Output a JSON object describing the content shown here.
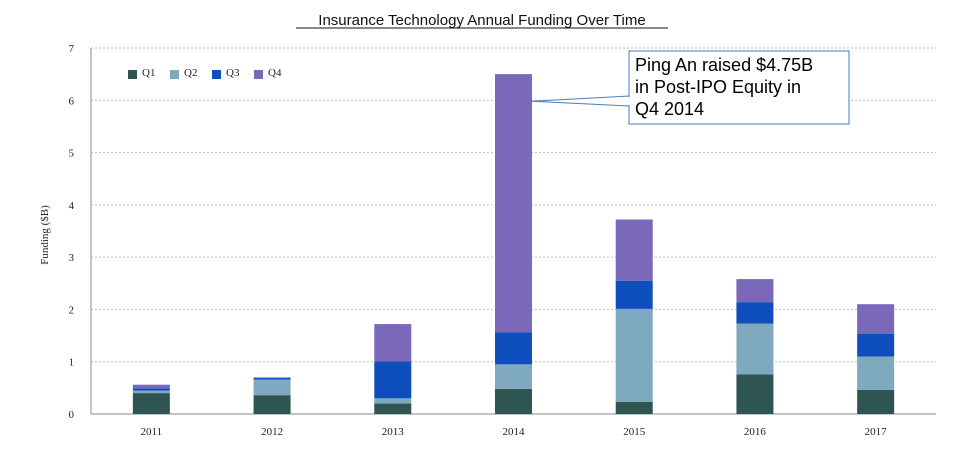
{
  "chart_data": {
    "type": "bar",
    "stacked": true,
    "title": "Insurance Technology Annual Funding Over Time",
    "xlabel": "",
    "ylabel": "Funding ($B)",
    "categories": [
      "2011",
      "2012",
      "2013",
      "2014",
      "2015",
      "2016",
      "2017"
    ],
    "ylim": [
      0,
      7
    ],
    "yticks": [
      0,
      1,
      2,
      3,
      4,
      5,
      6,
      7
    ],
    "grid": true,
    "legend_position": "top-left",
    "series": [
      {
        "name": "Q1",
        "color": "#2e5552",
        "values": [
          0.4,
          0.36,
          0.2,
          0.48,
          0.23,
          0.76,
          0.46
        ]
      },
      {
        "name": "Q2",
        "color": "#7fa9bf",
        "values": [
          0.05,
          0.3,
          0.1,
          0.47,
          1.78,
          0.97,
          0.64
        ]
      },
      {
        "name": "Q3",
        "color": "#0f4fbd",
        "values": [
          0.04,
          0.03,
          0.71,
          0.61,
          0.54,
          0.41,
          0.43
        ]
      },
      {
        "name": "Q4",
        "color": "#7a68b8",
        "values": [
          0.07,
          0.01,
          0.71,
          4.94,
          1.17,
          0.44,
          0.57
        ]
      }
    ],
    "annotation": {
      "lines": [
        "Ping An raised $4.75B",
        "in Post-IPO Equity in",
        "Q4 2014"
      ],
      "target_category": "2014",
      "target_value": 6.0
    }
  }
}
